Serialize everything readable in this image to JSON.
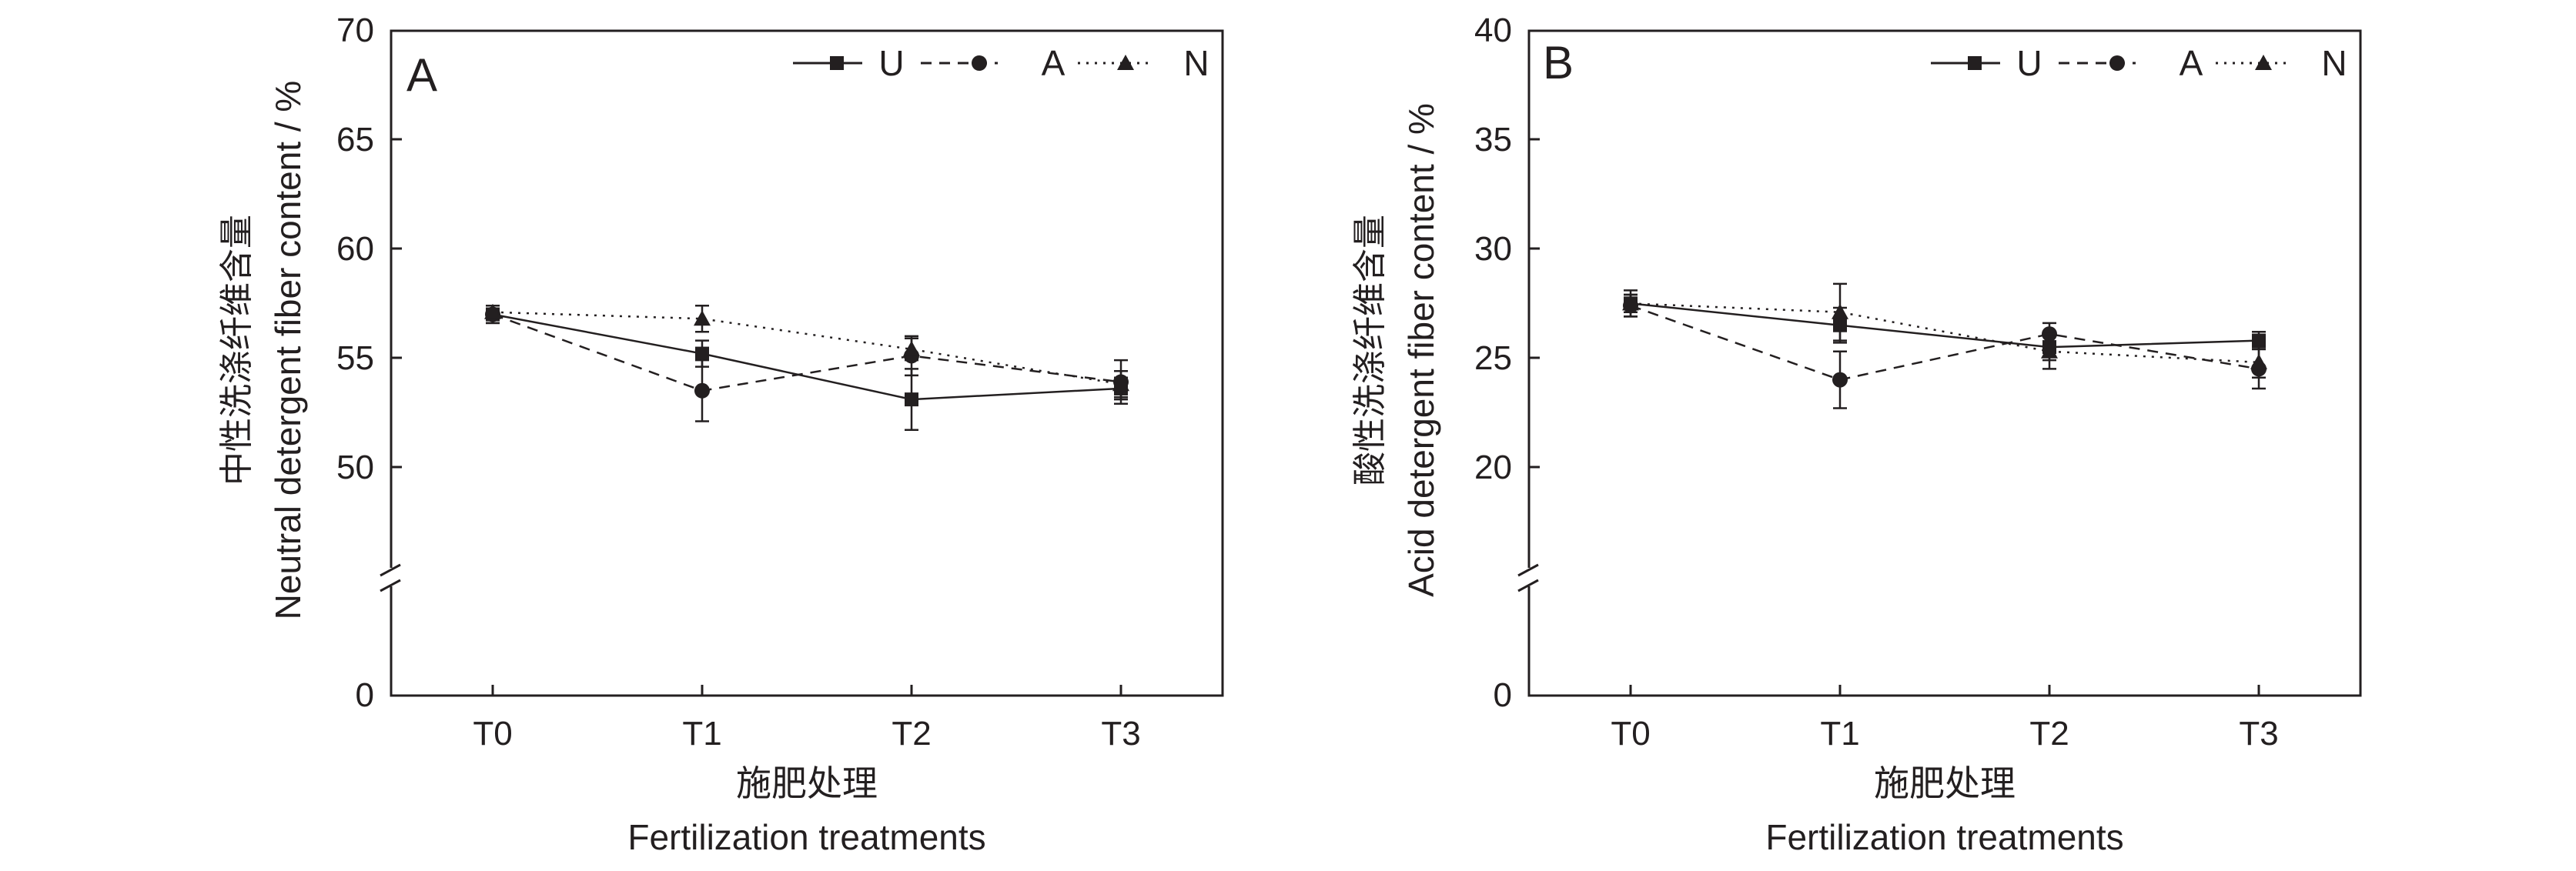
{
  "chart_data": [
    {
      "panel": "A",
      "type": "line",
      "categories": [
        "T0",
        "T1",
        "T2",
        "T3"
      ],
      "xlabel_cn": "施肥处理",
      "xlabel_en": "Fertilization treatments",
      "ylabel_cn": "中性洗涤纤维含量",
      "ylabel_en": "Neutral detergent fiber content / %",
      "yticks_upper": [
        "50",
        "55",
        "60",
        "65",
        "70"
      ],
      "ytick_zero": "0",
      "ylim": [
        45,
        70
      ],
      "y_break": true,
      "legend": "top-right",
      "series": [
        {
          "name": "U",
          "marker": "square",
          "line": "solid",
          "values": [
            57.0,
            55.2,
            53.1,
            53.6
          ],
          "errors": [
            0.4,
            0.6,
            1.4,
            0.5
          ]
        },
        {
          "name": "A",
          "marker": "circle",
          "line": "dashed",
          "values": [
            57.0,
            53.5,
            55.1,
            53.9
          ],
          "errors": [
            0.4,
            1.4,
            0.9,
            1.0
          ]
        },
        {
          "name": "N",
          "marker": "triangle",
          "line": "dotted",
          "values": [
            57.1,
            56.8,
            55.4,
            53.8
          ],
          "errors": [
            0.3,
            0.6,
            0.5,
            0.6
          ]
        }
      ]
    },
    {
      "panel": "B",
      "type": "line",
      "categories": [
        "T0",
        "T1",
        "T2",
        "T3"
      ],
      "xlabel_cn": "施肥处理",
      "xlabel_en": "Fertilization treatments",
      "ylabel_cn": "酸性洗涤纤维含量",
      "ylabel_en": "Acid detergent fiber content / %",
      "yticks_upper": [
        "20",
        "25",
        "30",
        "35",
        "40"
      ],
      "ytick_zero": "0",
      "ylim": [
        15,
        40
      ],
      "y_break": true,
      "legend": "top-right",
      "series": [
        {
          "name": "U",
          "marker": "square",
          "line": "solid",
          "values": [
            27.5,
            26.5,
            25.5,
            25.8
          ],
          "errors": [
            0.6,
            0.8,
            0.6,
            0.4
          ]
        },
        {
          "name": "A",
          "marker": "circle",
          "line": "dashed",
          "values": [
            27.4,
            24.0,
            26.1,
            24.5
          ],
          "errors": [
            0.5,
            1.3,
            0.5,
            0.9
          ]
        },
        {
          "name": "N",
          "marker": "triangle",
          "line": "dotted",
          "values": [
            27.5,
            27.1,
            25.3,
            24.8
          ],
          "errors": [
            0.4,
            1.3,
            0.8,
            0.7
          ]
        }
      ]
    }
  ]
}
